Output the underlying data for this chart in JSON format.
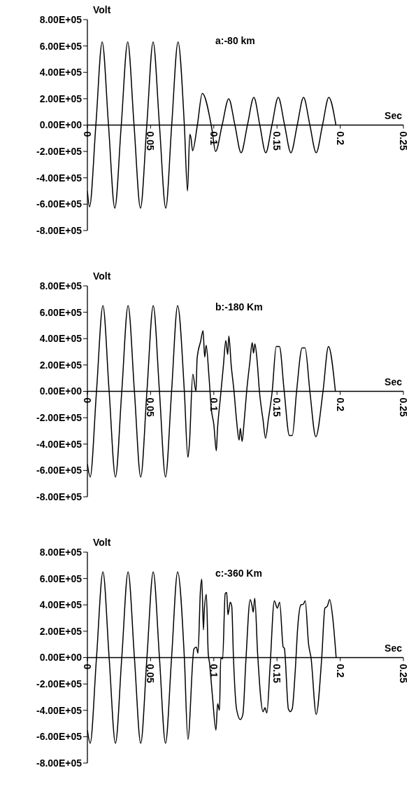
{
  "chart_data": [
    {
      "type": "line",
      "title": "a:-80 km",
      "xlabel": "Sec",
      "ylabel": "Volt",
      "xlim": [
        0,
        0.25
      ],
      "xticks": [
        0,
        0.05,
        0.1,
        0.15,
        0.2,
        0.25
      ],
      "ylim": [
        -800000,
        800000
      ],
      "yticks": [
        {
          "value": -800000,
          "label": "-8.00E+05"
        },
        {
          "value": -600000,
          "label": "-6.00E+05"
        },
        {
          "value": -400000,
          "label": "-4.00E+05"
        },
        {
          "value": -200000,
          "label": "-2.00E+05"
        },
        {
          "value": 0,
          "label": "0.00E+00"
        },
        {
          "value": 200000,
          "label": "2.00E+05"
        },
        {
          "value": 400000,
          "label": "4.00E+05"
        },
        {
          "value": 600000,
          "label": "6.00E+05"
        },
        {
          "value": 800000,
          "label": "8.00E+05"
        }
      ],
      "color": "#000000",
      "x": [
        0,
        0.0017,
        0.0067,
        0.0117,
        0.0167,
        0.0217,
        0.0268,
        0.0319,
        0.0369,
        0.042,
        0.047,
        0.052,
        0.057,
        0.062,
        0.0667,
        0.0717,
        0.0767,
        0.0792,
        0.081,
        0.082,
        0.0832,
        0.087,
        0.0909,
        0.0985,
        0.1014,
        0.1066,
        0.1118,
        0.1167,
        0.1216,
        0.1266,
        0.1317,
        0.1364,
        0.1411,
        0.146,
        0.151,
        0.156,
        0.161,
        0.166,
        0.171,
        0.176,
        0.181,
        0.186,
        0.191,
        0.1966
      ],
      "values": [
        -500000,
        -620000,
        0,
        630000,
        0,
        -630000,
        0,
        630000,
        0,
        -630000,
        0,
        630000,
        0,
        -630000,
        0,
        630000,
        0,
        -500000,
        -70000,
        -100000,
        -195000,
        0,
        240000,
        -30000,
        -200000,
        0,
        200000,
        0,
        -210000,
        0,
        210000,
        0,
        -210000,
        0,
        210000,
        0,
        -210000,
        0,
        210000,
        0,
        -210000,
        0,
        210000,
        0
      ]
    },
    {
      "type": "line",
      "title": "b:-180 Km",
      "xlabel": "Sec",
      "ylabel": "Volt",
      "xlim": [
        0,
        0.25
      ],
      "xticks": [
        0,
        0.05,
        0.1,
        0.15,
        0.2,
        0.25
      ],
      "ylim": [
        -800000,
        800000
      ],
      "yticks": [
        {
          "value": -800000,
          "label": "-8.00E+05"
        },
        {
          "value": -600000,
          "label": "-6.00E+05"
        },
        {
          "value": -400000,
          "label": "-4.00E+05"
        },
        {
          "value": -200000,
          "label": "-2.00E+05"
        },
        {
          "value": 0,
          "label": "0.00E+00"
        },
        {
          "value": 200000,
          "label": "2.00E+05"
        },
        {
          "value": 400000,
          "label": "4.00E+05"
        },
        {
          "value": 600000,
          "label": "6.00E+05"
        },
        {
          "value": 800000,
          "label": "8.00E+05"
        }
      ],
      "color": "#000000",
      "x": [
        0,
        0.0022,
        0.0072,
        0.0123,
        0.0172,
        0.0222,
        0.0272,
        0.0322,
        0.0372,
        0.0422,
        0.0471,
        0.0521,
        0.057,
        0.0618,
        0.0666,
        0.0714,
        0.0767,
        0.0795,
        0.0807,
        0.0834,
        0.0859,
        0.0868,
        0.0896,
        0.0915,
        0.0928,
        0.094,
        0.0962,
        0.0981,
        0.1,
        0.102,
        0.1029,
        0.1051,
        0.1076,
        0.1095,
        0.111,
        0.1119,
        0.1138,
        0.116,
        0.118,
        0.12,
        0.121,
        0.1224,
        0.124,
        0.126,
        0.1285,
        0.1304,
        0.1314,
        0.1325,
        0.1342,
        0.1361,
        0.139,
        0.1409,
        0.1432,
        0.1462,
        0.1494,
        0.1519,
        0.1557,
        0.1598,
        0.1621,
        0.1655,
        0.1699,
        0.1722,
        0.176,
        0.1807,
        0.1864,
        0.1907,
        0.1962
      ],
      "values": [
        -550000,
        -650000,
        0,
        650000,
        0,
        -650000,
        0,
        650000,
        0,
        -650000,
        0,
        650000,
        0,
        -650000,
        0,
        650000,
        0,
        -500000,
        -400000,
        130000,
        0,
        250000,
        380000,
        460000,
        260000,
        350000,
        110000,
        -140000,
        -250000,
        -450000,
        -290000,
        -60000,
        195000,
        385000,
        280000,
        420000,
        195000,
        0,
        -220000,
        -370000,
        -280000,
        -380000,
        -230000,
        0,
        220000,
        370000,
        290000,
        360000,
        240000,
        0,
        -220000,
        -355000,
        -210000,
        0,
        340000,
        340000,
        0,
        -335000,
        -335000,
        0,
        330000,
        330000,
        0,
        -345000,
        0,
        340000,
        0
      ]
    },
    {
      "type": "line",
      "title": "c:-360 Km",
      "xlabel": "Sec",
      "ylabel": "Volt",
      "xlim": [
        0,
        0.25
      ],
      "xticks": [
        0,
        0.05,
        0.1,
        0.15,
        0.2,
        0.25
      ],
      "ylim": [
        -800000,
        800000
      ],
      "yticks": [
        {
          "value": -800000,
          "label": "-8.00E+05"
        },
        {
          "value": -600000,
          "label": "-6.00E+05"
        },
        {
          "value": -400000,
          "label": "-4.00E+05"
        },
        {
          "value": -200000,
          "label": "-2.00E+05"
        },
        {
          "value": 0,
          "label": "0.00E+00"
        },
        {
          "value": 200000,
          "label": "2.00E+05"
        },
        {
          "value": 400000,
          "label": "4.00E+05"
        },
        {
          "value": 600000,
          "label": "6.00E+05"
        },
        {
          "value": 800000,
          "label": "8.00E+05"
        }
      ],
      "color": "#000000",
      "x": [
        0,
        0.0022,
        0.0072,
        0.0123,
        0.0172,
        0.0222,
        0.0272,
        0.0322,
        0.0372,
        0.0422,
        0.0471,
        0.0521,
        0.057,
        0.0618,
        0.0666,
        0.0714,
        0.0767,
        0.0795,
        0.0843,
        0.0862,
        0.0875,
        0.0894,
        0.0905,
        0.0918,
        0.0924,
        0.0941,
        0.0956,
        0.0966,
        0.099,
        0.1017,
        0.103,
        0.1045,
        0.1055,
        0.107,
        0.109,
        0.1102,
        0.1112,
        0.113,
        0.1142,
        0.1155,
        0.118,
        0.121,
        0.123,
        0.1254,
        0.1288,
        0.1303,
        0.1312,
        0.1324,
        0.1347,
        0.139,
        0.1405,
        0.142,
        0.1445,
        0.1479,
        0.1502,
        0.1521,
        0.1549,
        0.1559,
        0.1565,
        0.159,
        0.1605,
        0.162,
        0.1645,
        0.1664,
        0.1689,
        0.1708,
        0.1723,
        0.175,
        0.1769,
        0.181,
        0.1854,
        0.1879,
        0.1898,
        0.1917,
        0.194,
        0.1968
      ],
      "values": [
        -550000,
        -650000,
        0,
        650000,
        0,
        -650000,
        0,
        650000,
        0,
        -650000,
        0,
        650000,
        0,
        -650000,
        0,
        650000,
        0,
        -620000,
        66000,
        80000,
        34000,
        505000,
        595000,
        210000,
        345000,
        480000,
        30000,
        -40000,
        -300000,
        -550000,
        -350000,
        -400000,
        0,
        -10000,
        485000,
        495000,
        325000,
        420000,
        390000,
        15000,
        -390000,
        -470000,
        -430000,
        -20000,
        440000,
        390000,
        345000,
        450000,
        25000,
        -410000,
        -380000,
        -420000,
        -70000,
        430000,
        375000,
        420000,
        80000,
        70000,
        0,
        -390000,
        -410000,
        -390000,
        -90000,
        230000,
        400000,
        405000,
        430000,
        100000,
        0,
        -430000,
        0,
        375000,
        390000,
        440000,
        310000,
        0
      ]
    }
  ]
}
